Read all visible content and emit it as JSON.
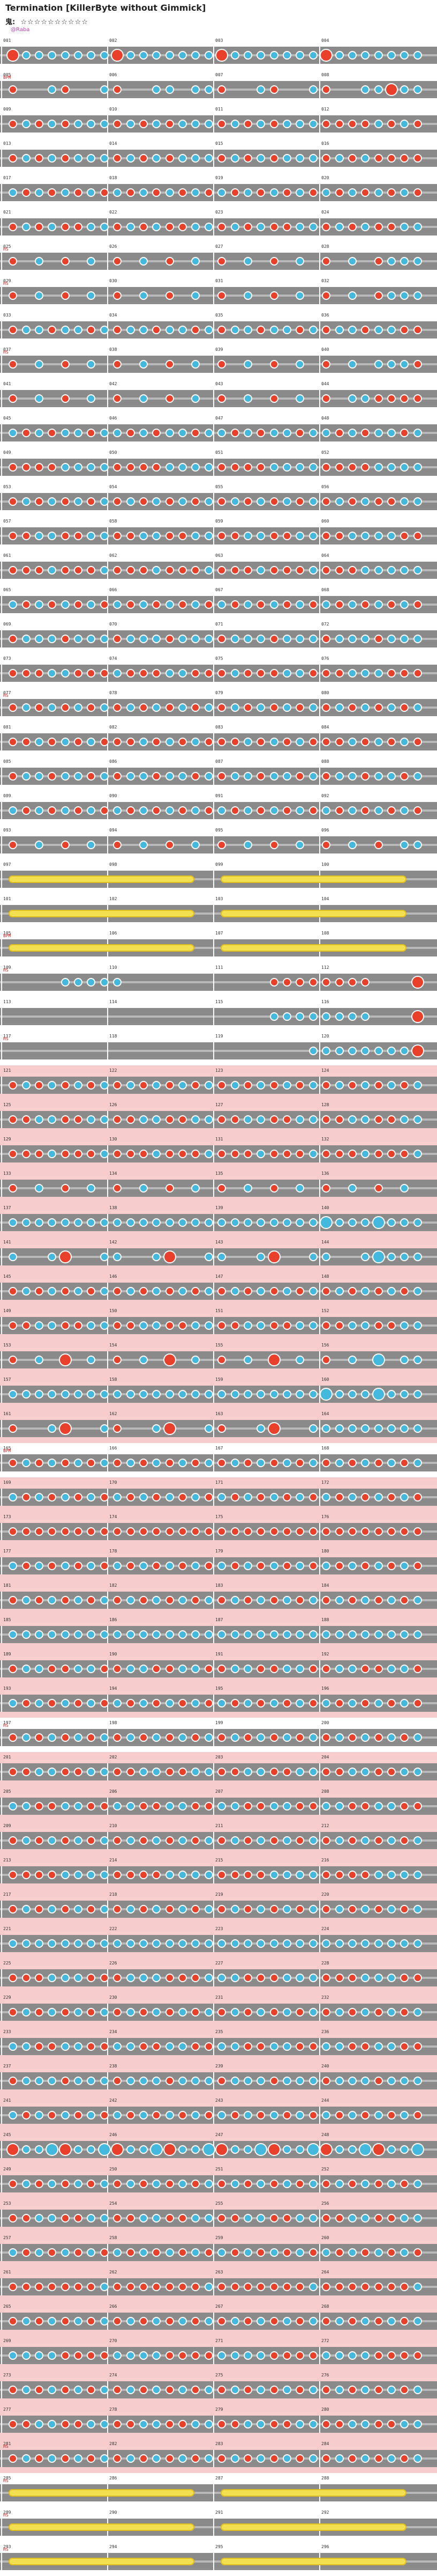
{
  "title": "Termination [KillerByte without Gimmick]",
  "difficulty": {
    "label": "鬼:",
    "stars": "☆☆☆☆☆☆☆☆☆☆"
  },
  "author": "@Raba",
  "colors": {
    "don": "#e8402a",
    "ka": "#44b9dd",
    "roll": "#f2e050",
    "lane": "#8a8a8a",
    "gogo": "#f6cccc"
  },
  "bars": [
    {
      "n": 1,
      "notes": "DkkkkkkkDkkkkkkkDkkkkkkkDkkkkkkk"
    },
    {
      "n": 5,
      "mark": "BPM",
      "notes": "d00kd00kd00kk0kkd00kd00kd00kkDkk"
    },
    {
      "n": 9,
      "notes": "dkdkdkkkdkdkdkkkdkdkdkkkddddkdkd"
    },
    {
      "n": 13,
      "notes": "dkdkdkkkdkdkdkkkdkdkdkkkdkdkdddd"
    },
    {
      "n": 17,
      "notes": "kdkdkdkdkdkdkdkdkdkdkdkdkdkdkdkd"
    },
    {
      "n": 21,
      "notes": "dkdkddkkdkdkddkkdkdkddkkdkdkddkk"
    },
    {
      "n": 25,
      "mark": "HS",
      "notes": "d0k0d0k0d0k0d0k0d0k0d0k0d0k0dkkk"
    },
    {
      "n": 29,
      "mark": "HS",
      "notes": "d0k0d0k0d0k0d0k0d0k0d0k0d0k0dkkk"
    },
    {
      "n": 33,
      "notes": "dkkdkkdkdkkdkkdkdkkdkkdkdkkdkkdd"
    },
    {
      "n": 37,
      "mark": "HS",
      "notes": "d0k0d0k0d0k0d0k0d0k0d0k0d0k0kkkd"
    },
    {
      "n": 41,
      "notes": "d0k0d0k0d0k0d0k0d0k0d0k0d0kkdddd"
    },
    {
      "n": 45,
      "notes": "kdkdkkdkkdkdkkdkkdkdkkdkkdkdkkdk"
    },
    {
      "n": 49,
      "notes": "ddddkkkkddddkkkkddddkkkkddddkkkk"
    },
    {
      "n": 53,
      "notes": "dkdkdkdkdkdkdkdkdkdkdkdkdkdkddkk"
    },
    {
      "n": 57,
      "notes": "ddkkddkkddkkddkkddkkddkkddkkkkdd"
    },
    {
      "n": 61,
      "notes": "dddkdddkdddkdddkdddkdddkdddkkkkk"
    },
    {
      "n": 65,
      "notes": "kdkdkdkdkdkdkdkdkdkdkdkdkdkdkdkd"
    },
    {
      "n": 69,
      "notes": "dkkkdkkkdkkkdkkkdkkkdkkkdkkkdkkk"
    },
    {
      "n": 73,
      "notes": "dddkkdddkdddkkdddkdddkkdddkkkddd"
    },
    {
      "n": 77,
      "mark": "HS",
      "notes": "dkdkdkdkdkdkdkdkdkdkdkdkdkdkdkdk"
    },
    {
      "n": 81,
      "notes": "ddkdkdkdddkdkdkdddkdkdkdddkdkdkd"
    },
    {
      "n": 85,
      "notes": "dkkdkkdkdkkdkkdkdkkdkkdkdkkdkkdk"
    },
    {
      "n": 89,
      "notes": "kdkdkdkdkdkdkdkdkdkdkdkdkdkdkdkd"
    },
    {
      "n": 93,
      "notes": "d0k0d0k0d0k0d0k0d0k0d0k0d0k0d0kk"
    },
    {
      "n": 97,
      "roll": true
    },
    {
      "n": 101,
      "roll": true
    },
    {
      "n": 105,
      "roll": true,
      "mark": "BPM"
    },
    {
      "n": 109,
      "mark": "HS",
      "notes": "0000kkkkk00000000000dddddddd000D"
    },
    {
      "n": 113,
      "notes": "00000000000000000000kkkkkkkk000D"
    },
    {
      "n": 117,
      "mark": "HS",
      "notes": "00000000000000000000000kkkkkkkkD"
    },
    {
      "n": 121,
      "gogo": true,
      "notes": "dkdkdkdkdkdkdkdkdkdkdkdkdkdkdkdk"
    },
    {
      "n": 125,
      "gogo": true,
      "notes": "ddkkddkkddkkddkkddkkddkkddkkddkk"
    },
    {
      "n": 129,
      "gogo": true,
      "notes": "dddkdddkdddkdddkdddkdddkdddkdddk"
    },
    {
      "n": 133,
      "gogo": true,
      "notes": "d0k0d0k0d0k0d0k0d0k0d0k0d0k0d0k0"
    },
    {
      "n": 137,
      "gogo": true,
      "notes": "kkkkkkkkkkkkkkkkkkkkkkkkKkkkKkkk"
    },
    {
      "n": 141,
      "gogo": true,
      "notes": "k00kD00kk00kD00kk00kD00kk00kKkkk"
    },
    {
      "n": 145,
      "gogo": true,
      "notes": "dkdkdkdkdkdkdkdkdkdkdkdkdkdkdkdk"
    },
    {
      "n": 149,
      "gogo": true,
      "notes": "ddkkddkkddkkddkkddkkddkkddkkddkk"
    },
    {
      "n": 153,
      "gogo": true,
      "notes": "d0k0D0k0d0k0D0k0d0k0D0k0d0k0K0kk"
    },
    {
      "n": 157,
      "gogo": true,
      "notes": "kkkkkkkkkkkkkkkkkkkkkkkkKkkkKkkk"
    },
    {
      "n": 161,
      "gogo": true,
      "notes": "d00kD00kd00kD00kd00kD00kkkkkkkkk"
    },
    {
      "n": 165,
      "mark": "BPM",
      "notes": "dkdkdkdkdkdkdkdkdkdkdkdkdkdkdkdk"
    },
    {
      "n": 169,
      "gogo": true,
      "notes": "kdkdkdkdkdkdkdkdkdkdkdkdkdkdkdkd"
    },
    {
      "n": 173,
      "gogo": true,
      "notes": "dddddddddddddddddddddddddddddddd"
    },
    {
      "n": 177,
      "gogo": true,
      "notes": "kdkdkdkdkdkdkdkdkdkdkdkdkdkdkdkd"
    },
    {
      "n": 181,
      "gogo": true,
      "notes": "dkdkdkdkdkdkdkdkdkdkdkdkdkdkdkdk"
    },
    {
      "n": 185,
      "gogo": true,
      "notes": "kkkkkkkkkkkkkkkkkkkkkkkkkkkkkkkk"
    },
    {
      "n": 189,
      "gogo": true,
      "notes": "dkkddkkddkkddkkddkkddkkddkkddkkd"
    },
    {
      "n": 193,
      "gogo": true,
      "notes": "kdkdkdkdkdkdkdkdkdkdkdkdkdkdkdkd"
    },
    {
      "n": 197,
      "mark": "HS",
      "notes": "dkdkdkdkdkdkdkdkdkdkdkdkdkdkdkdk"
    },
    {
      "n": 201,
      "gogo": true,
      "notes": "ddkkddkkddkkddkkddkkddkkddkkddkk"
    },
    {
      "n": 205,
      "gogo": true,
      "notes": "kkddkkddkkddkkddkkddkkddkkddkkdd"
    },
    {
      "n": 209,
      "gogo": true,
      "notes": "dkdkdkdkdkdkdkdkdkdkdkdkdkdkdkdk"
    },
    {
      "n": 213,
      "gogo": true,
      "notes": "ddddkkkkddddkkkkddddkkkkddddkkkk"
    },
    {
      "n": 217,
      "gogo": true,
      "notes": "dkdkdkdkdkdkdkdkdkdkdkdkdkdkdkdk"
    },
    {
      "n": 221,
      "gogo": true,
      "notes": "kkkkkkkkkkkkkkkkkkkkkkkkkkkkkkkk"
    },
    {
      "n": 225,
      "gogo": true,
      "notes": "dddkkkdddkkkdddkkkdddkkkdddkkkdd"
    },
    {
      "n": 229,
      "gogo": true,
      "notes": "dkdkdkdkdkdkdkdkdkdkdkdkdkdkdkdk"
    },
    {
      "n": 233,
      "gogo": true,
      "notes": "kkddkkddkkddkkddkkddkkddkkddkkdd"
    },
    {
      "n": 237,
      "gogo": true,
      "notes": "dkkkdkkkdkkkdkkkdkkkdkkkdkkkdkkk"
    },
    {
      "n": 241,
      "gogo": true,
      "notes": "kdkdkdkdkdkdkdkdkdkdkdkdkdkdkdkd"
    },
    {
      "n": 245,
      "gogo": true,
      "notes": "DkkKDkkKDkkKDkkKDkkKDkkKDkkKDkkK"
    },
    {
      "n": 249,
      "gogo": true,
      "notes": "dkdkdkdkdkdkdkdkdkdkdkdkdkdkdkdk"
    },
    {
      "n": 253,
      "gogo": true,
      "notes": "ddkkddkkddkkddkkddkkddkkddkkddkk"
    },
    {
      "n": 257,
      "gogo": true,
      "notes": "kdkdkdkdkdkdkdkdkdkdkdkdkdkdkdkd"
    },
    {
      "n": 261,
      "gogo": true,
      "notes": "dddddddkdddddddkdddddddkdddddddk"
    },
    {
      "n": 265,
      "gogo": true,
      "notes": "dkdkdkdkdkdkdkdkdkdkdkdkdkdkdkdk"
    },
    {
      "n": 269,
      "gogo": true,
      "notes": "kkkkddddkkkkddddkkkkddddkkkkdddd"
    },
    {
      "n": 273,
      "gogo": true,
      "notes": "dkdkdkdkdkdkdkdkdkdkdkdkdkdkdkdk"
    },
    {
      "n": 277,
      "gogo": true,
      "notes": "ddkkddkkddkkddkkddkkddkkddkkddkk"
    },
    {
      "n": 281,
      "gogo": true,
      "mark": "HS",
      "notes": "dkdkdkdkdkdkdkdkdkdkdkdkdkdkdkdk"
    },
    {
      "n": 285,
      "mark": "HS",
      "roll": true
    },
    {
      "n": 289,
      "mark": "HS",
      "roll": true
    },
    {
      "n": 293,
      "mark": "HS",
      "roll": true
    }
  ]
}
